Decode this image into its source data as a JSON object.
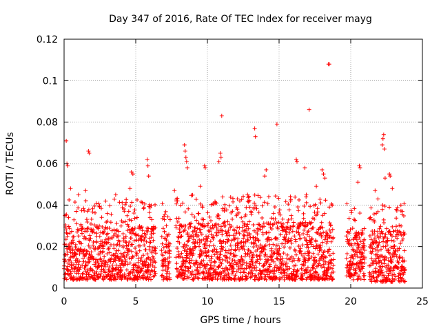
{
  "chart_data": {
    "type": "scatter",
    "title": "Day 347 of 2016, Rate Of TEC Index for receiver mayg",
    "xlabel": "GPS time / hours",
    "ylabel": "ROTI / TECUs",
    "xlim": [
      0,
      25
    ],
    "ylim": [
      0,
      0.12
    ],
    "x_ticks": [
      "0",
      "5",
      "10",
      "15",
      "20",
      "25"
    ],
    "y_ticks": [
      "0",
      "0.02",
      "0.04",
      "0.06",
      "0.08",
      "0.1",
      "0.12"
    ],
    "grid": true,
    "marker": "+",
    "color": "#ff0000",
    "coverage": [
      {
        "start": 0.0,
        "end": 6.4,
        "typical_min": 0.004,
        "typical_max": 0.03
      },
      {
        "start": 6.8,
        "end": 7.4,
        "typical_min": 0.004,
        "typical_max": 0.028
      },
      {
        "start": 7.8,
        "end": 18.8,
        "typical_min": 0.004,
        "typical_max": 0.032
      },
      {
        "start": 19.7,
        "end": 21.0,
        "typical_min": 0.004,
        "typical_max": 0.028
      },
      {
        "start": 21.3,
        "end": 23.8,
        "typical_min": 0.003,
        "typical_max": 0.028
      }
    ],
    "notable_points": [
      {
        "x": 0.15,
        "y": 0.071
      },
      {
        "x": 0.2,
        "y": 0.06
      },
      {
        "x": 0.25,
        "y": 0.059
      },
      {
        "x": 0.45,
        "y": 0.048
      },
      {
        "x": 1.0,
        "y": 0.045
      },
      {
        "x": 1.5,
        "y": 0.047
      },
      {
        "x": 1.7,
        "y": 0.066
      },
      {
        "x": 1.75,
        "y": 0.065
      },
      {
        "x": 3.6,
        "y": 0.045
      },
      {
        "x": 4.6,
        "y": 0.048
      },
      {
        "x": 4.7,
        "y": 0.056
      },
      {
        "x": 4.8,
        "y": 0.055
      },
      {
        "x": 5.8,
        "y": 0.062
      },
      {
        "x": 5.85,
        "y": 0.059
      },
      {
        "x": 5.9,
        "y": 0.054
      },
      {
        "x": 7.0,
        "y": 0.033
      },
      {
        "x": 7.4,
        "y": 0.033
      },
      {
        "x": 7.7,
        "y": 0.047
      },
      {
        "x": 8.4,
        "y": 0.069
      },
      {
        "x": 8.45,
        "y": 0.066
      },
      {
        "x": 8.5,
        "y": 0.063
      },
      {
        "x": 8.55,
        "y": 0.061
      },
      {
        "x": 8.6,
        "y": 0.058
      },
      {
        "x": 9.8,
        "y": 0.059
      },
      {
        "x": 9.85,
        "y": 0.058
      },
      {
        "x": 10.8,
        "y": 0.061
      },
      {
        "x": 10.9,
        "y": 0.065
      },
      {
        "x": 10.95,
        "y": 0.063
      },
      {
        "x": 11.0,
        "y": 0.083
      },
      {
        "x": 12.8,
        "y": 0.045
      },
      {
        "x": 13.3,
        "y": 0.077
      },
      {
        "x": 13.35,
        "y": 0.073
      },
      {
        "x": 14.0,
        "y": 0.054
      },
      {
        "x": 14.1,
        "y": 0.057
      },
      {
        "x": 14.85,
        "y": 0.079
      },
      {
        "x": 16.2,
        "y": 0.062
      },
      {
        "x": 16.25,
        "y": 0.061
      },
      {
        "x": 16.8,
        "y": 0.058
      },
      {
        "x": 17.1,
        "y": 0.086
      },
      {
        "x": 17.6,
        "y": 0.049
      },
      {
        "x": 18.0,
        "y": 0.057
      },
      {
        "x": 18.1,
        "y": 0.055
      },
      {
        "x": 18.2,
        "y": 0.053
      },
      {
        "x": 18.45,
        "y": 0.108
      },
      {
        "x": 18.5,
        "y": 0.108
      },
      {
        "x": 20.6,
        "y": 0.059
      },
      {
        "x": 20.65,
        "y": 0.058
      },
      {
        "x": 20.5,
        "y": 0.051
      },
      {
        "x": 21.9,
        "y": 0.043
      },
      {
        "x": 22.2,
        "y": 0.069
      },
      {
        "x": 22.25,
        "y": 0.072
      },
      {
        "x": 22.3,
        "y": 0.074
      },
      {
        "x": 22.35,
        "y": 0.067
      },
      {
        "x": 22.4,
        "y": 0.053
      },
      {
        "x": 22.7,
        "y": 0.055
      },
      {
        "x": 22.75,
        "y": 0.054
      },
      {
        "x": 22.9,
        "y": 0.048
      },
      {
        "x": 23.5,
        "y": 0.04
      },
      {
        "x": 23.6,
        "y": 0.037
      },
      {
        "x": 21.7,
        "y": 0.047
      },
      {
        "x": 16.9,
        "y": 0.045
      },
      {
        "x": 15.8,
        "y": 0.042
      },
      {
        "x": 12.1,
        "y": 0.043
      },
      {
        "x": 9.5,
        "y": 0.049
      }
    ]
  }
}
